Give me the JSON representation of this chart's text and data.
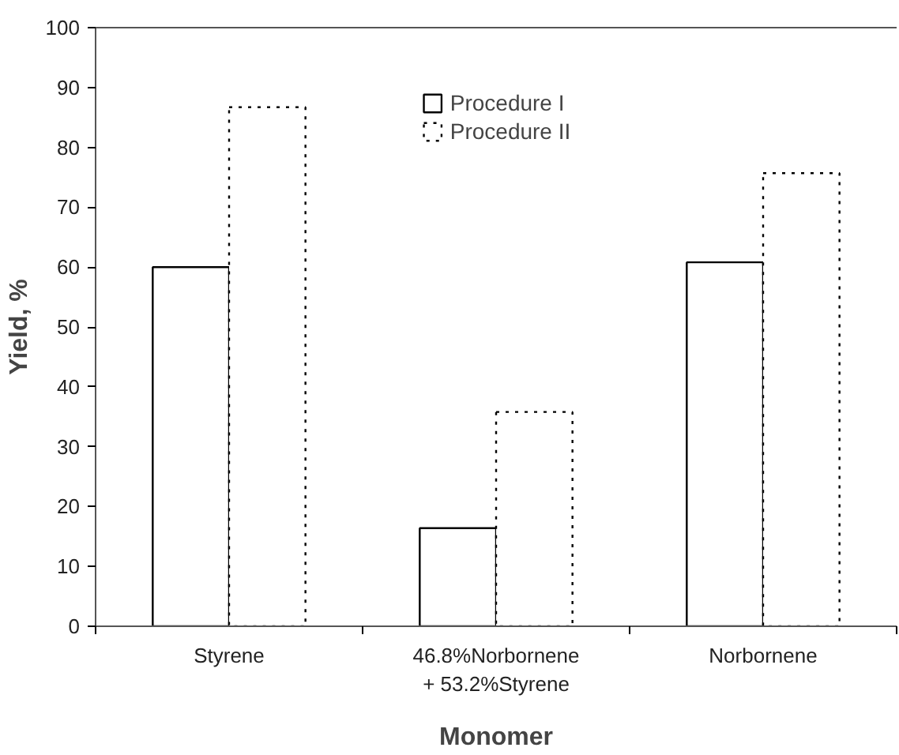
{
  "chart_data": {
    "type": "bar",
    "xlabel": "Monomer",
    "ylabel": "Yield, %",
    "categories": [
      "Styrene",
      "46.8%Norbornene\n+ 53.2%Styrene",
      "Norbornene"
    ],
    "series": [
      {
        "name": "Procedure I",
        "color": "#000000",
        "line_style": "solid",
        "values": [
          60,
          16.4,
          60.8
        ]
      },
      {
        "name": "Procedure II",
        "color": "#000000",
        "line_style": "dotted",
        "values": [
          86.7,
          35.8,
          75.7
        ]
      }
    ],
    "ylim": [
      0,
      100
    ],
    "yticks": [
      0,
      10,
      20,
      30,
      40,
      50,
      60,
      70,
      80,
      90,
      100
    ],
    "grid": false,
    "legend": "top"
  }
}
